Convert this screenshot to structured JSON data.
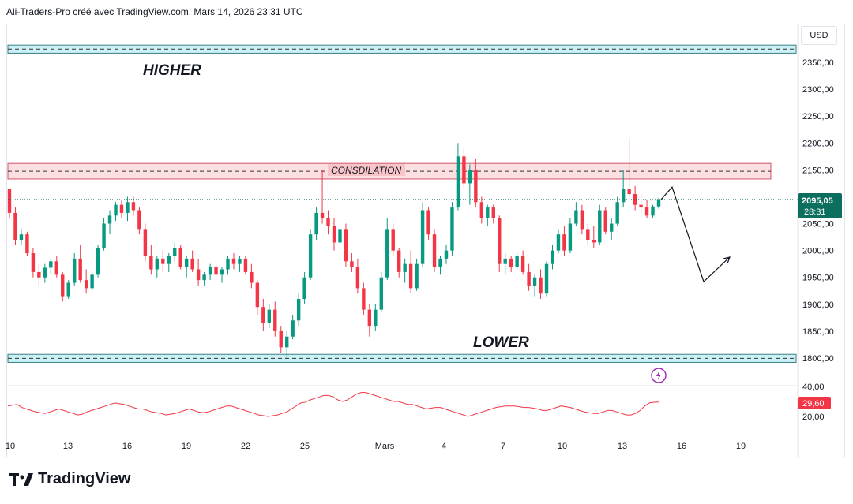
{
  "header": "Ali-Traders-Pro créé avec TradingView.com, Mars 14, 2026 23:31 UTC",
  "currency": "USD",
  "brand": "TradingView",
  "annotations": {
    "higher": "HIGHER",
    "lower": "LOWER",
    "consolidation": "CONSDILATION"
  },
  "price_badge": {
    "value": "2095,05",
    "countdown": "28:31",
    "color": "#0b6e5e"
  },
  "indicator_badge": {
    "value": "29,60",
    "color": "#f23645"
  },
  "colors": {
    "up": "#089981",
    "down": "#f23645",
    "zone": "#b2ebf2",
    "consolidation": "#f8c4c8",
    "indicator": "#f23645"
  },
  "icons": [
    "lightning-icon",
    "tradingview-logo-icon"
  ],
  "chart_data": {
    "type": "candlestick",
    "ylim": [
      1780,
      2390
    ],
    "y_ticks": [
      "2350,00",
      "2300,00",
      "2250,00",
      "2200,00",
      "2150,00",
      "2100,00",
      "2050,00",
      "2000,00",
      "1950,00",
      "1900,00",
      "1850,00",
      "1800,00"
    ],
    "y_tick_values": [
      2350,
      2300,
      2250,
      2200,
      2150,
      2100,
      2050,
      2000,
      1950,
      1900,
      1850,
      1800
    ],
    "x_ticks": [
      "10",
      "13",
      "16",
      "19",
      "22",
      "25",
      "Mars",
      "4",
      "7",
      "10",
      "13",
      "16",
      "19"
    ],
    "zones": [
      {
        "name": "higher",
        "from": 2367,
        "to": 2382
      },
      {
        "name": "consolidation",
        "from": 2133,
        "to": 2162
      },
      {
        "name": "lower",
        "from": 1792,
        "to": 1807
      }
    ],
    "last_price": 2095.05,
    "projection": [
      [
        2095,
        2118
      ],
      [
        2118,
        1942
      ],
      [
        1942,
        1988
      ]
    ],
    "indicator": {
      "ylim": [
        18,
        42
      ],
      "y_ticks": [
        "40,00",
        "20,00"
      ],
      "y_tick_values": [
        40,
        20
      ],
      "last": 29.6
    },
    "ohlc_path": [
      [
        2115,
        2105,
        2060,
        2070
      ],
      [
        2070,
        2080,
        2010,
        2020
      ],
      [
        2020,
        2040,
        2010,
        2030
      ],
      [
        2030,
        2035,
        1990,
        1995
      ],
      [
        1995,
        2005,
        1950,
        1960
      ],
      [
        1960,
        1975,
        1935,
        1950
      ],
      [
        1950,
        1975,
        1940,
        1968
      ],
      [
        1968,
        1985,
        1955,
        1980
      ],
      [
        1980,
        1990,
        1950,
        1955
      ],
      [
        1955,
        1960,
        1905,
        1915
      ],
      [
        1915,
        1945,
        1910,
        1940
      ],
      [
        1940,
        1995,
        1935,
        1985
      ],
      [
        1985,
        2010,
        1940,
        1945
      ],
      [
        1945,
        1965,
        1920,
        1930
      ],
      [
        1930,
        1960,
        1925,
        1955
      ],
      [
        1955,
        2010,
        1950,
        2005
      ],
      [
        2005,
        2060,
        2000,
        2050
      ],
      [
        2050,
        2075,
        2030,
        2065
      ],
      [
        2065,
        2090,
        2055,
        2085
      ],
      [
        2085,
        2095,
        2060,
        2070
      ],
      [
        2070,
        2100,
        2055,
        2090
      ],
      [
        2090,
        2100,
        2065,
        2075
      ],
      [
        2075,
        2080,
        2030,
        2040
      ],
      [
        2040,
        2050,
        1980,
        1990
      ],
      [
        1990,
        2010,
        1955,
        1965
      ],
      [
        1965,
        1990,
        1950,
        1985
      ],
      [
        1985,
        2000,
        1960,
        1975
      ],
      [
        1975,
        1995,
        1960,
        1990
      ],
      [
        1990,
        2015,
        1980,
        2005
      ],
      [
        2005,
        2010,
        1965,
        1970
      ],
      [
        1970,
        1990,
        1950,
        1985
      ],
      [
        1985,
        2000,
        1960,
        1965
      ],
      [
        1965,
        1985,
        1935,
        1945
      ],
      [
        1945,
        1960,
        1935,
        1955
      ],
      [
        1955,
        1975,
        1945,
        1970
      ],
      [
        1970,
        1975,
        1945,
        1955
      ],
      [
        1955,
        1970,
        1940,
        1965
      ],
      [
        1965,
        1990,
        1955,
        1985
      ],
      [
        1985,
        1995,
        1965,
        1975
      ],
      [
        1975,
        1990,
        1960,
        1985
      ],
      [
        1985,
        1990,
        1955,
        1960
      ],
      [
        1960,
        1975,
        1930,
        1940
      ],
      [
        1940,
        1945,
        1880,
        1895
      ],
      [
        1895,
        1910,
        1850,
        1865
      ],
      [
        1865,
        1900,
        1855,
        1890
      ],
      [
        1890,
        1905,
        1840,
        1850
      ],
      [
        1850,
        1860,
        1810,
        1820
      ],
      [
        1820,
        1850,
        1800,
        1840
      ],
      [
        1840,
        1880,
        1835,
        1870
      ],
      [
        1870,
        1920,
        1860,
        1910
      ],
      [
        1910,
        1960,
        1900,
        1950
      ],
      [
        1950,
        2040,
        1945,
        2030
      ],
      [
        2030,
        2080,
        2020,
        2070
      ],
      [
        2070,
        2150,
        2050,
        2060
      ],
      [
        2060,
        2075,
        2030,
        2045
      ],
      [
        2045,
        2060,
        2000,
        2015
      ],
      [
        2015,
        2055,
        1995,
        2040
      ],
      [
        2040,
        2050,
        1970,
        1980
      ],
      [
        1980,
        1995,
        1960,
        1970
      ],
      [
        1970,
        1985,
        1920,
        1930
      ],
      [
        1930,
        1940,
        1880,
        1890
      ],
      [
        1890,
        1900,
        1840,
        1860
      ],
      [
        1860,
        1900,
        1850,
        1890
      ],
      [
        1890,
        1960,
        1885,
        1950
      ],
      [
        1950,
        2060,
        1945,
        2040
      ],
      [
        2040,
        2050,
        1990,
        2000
      ],
      [
        2000,
        2005,
        1950,
        1960
      ],
      [
        1960,
        1985,
        1940,
        1975
      ],
      [
        1975,
        2000,
        1920,
        1930
      ],
      [
        1930,
        1985,
        1925,
        1975
      ],
      [
        1975,
        2090,
        1970,
        2075
      ],
      [
        2075,
        2080,
        2020,
        2030
      ],
      [
        2030,
        2040,
        1960,
        1970
      ],
      [
        1970,
        1990,
        1955,
        1985
      ],
      [
        1985,
        2010,
        1975,
        2000
      ],
      [
        2000,
        2090,
        1990,
        2080
      ],
      [
        2080,
        2200,
        2075,
        2175
      ],
      [
        2175,
        2190,
        2115,
        2125
      ],
      [
        2125,
        2160,
        2085,
        2150
      ],
      [
        2150,
        2170,
        2080,
        2090
      ],
      [
        2090,
        2100,
        2050,
        2060
      ],
      [
        2060,
        2085,
        2045,
        2080
      ],
      [
        2080,
        2085,
        2050,
        2060
      ],
      [
        2060,
        2065,
        1960,
        1975
      ],
      [
        1975,
        1995,
        1955,
        1985
      ],
      [
        1985,
        1990,
        1960,
        1970
      ],
      [
        1970,
        1995,
        1965,
        1990
      ],
      [
        1990,
        2000,
        1955,
        1960
      ],
      [
        1960,
        1975,
        1925,
        1935
      ],
      [
        1935,
        1955,
        1915,
        1950
      ],
      [
        1950,
        1965,
        1910,
        1920
      ],
      [
        1920,
        1980,
        1915,
        1975
      ],
      [
        1975,
        2010,
        1965,
        2000
      ],
      [
        2000,
        2040,
        1995,
        2030
      ],
      [
        2030,
        2045,
        1990,
        2000
      ],
      [
        2000,
        2060,
        1995,
        2050
      ],
      [
        2050,
        2090,
        2045,
        2075
      ],
      [
        2075,
        2085,
        2030,
        2040
      ],
      [
        2040,
        2050,
        2010,
        2020
      ],
      [
        2020,
        2045,
        2005,
        2015
      ],
      [
        2015,
        2085,
        2010,
        2075
      ],
      [
        2075,
        2080,
        2030,
        2035
      ],
      [
        2035,
        2060,
        2020,
        2050
      ],
      [
        2050,
        2100,
        2045,
        2090
      ],
      [
        2090,
        2150,
        2080,
        2115
      ],
      [
        2115,
        2210,
        2100,
        2105
      ],
      [
        2105,
        2120,
        2075,
        2085
      ],
      [
        2085,
        2105,
        2070,
        2080
      ],
      [
        2080,
        2095,
        2060,
        2065
      ],
      [
        2065,
        2085,
        2060,
        2082
      ],
      [
        2082,
        2098,
        2078,
        2095
      ]
    ],
    "indicator_values": [
      27,
      27.5,
      28,
      26,
      25,
      24,
      23,
      22.5,
      22,
      23,
      24,
      25,
      24,
      23,
      22,
      21,
      21.5,
      23,
      24,
      25,
      26,
      27,
      28,
      29,
      28.5,
      28,
      27,
      26,
      25,
      25,
      24,
      23,
      22.5,
      22,
      21,
      21.5,
      22,
      23,
      24,
      25,
      24,
      23,
      22.5,
      23,
      24,
      25,
      26,
      27,
      27,
      26,
      25,
      24,
      23,
      22,
      21,
      20.5,
      20,
      20.5,
      21,
      22,
      23,
      25,
      27,
      29,
      29.5,
      31,
      32,
      33,
      34,
      34,
      33,
      31,
      30,
      31,
      33,
      35,
      36,
      36,
      35,
      34,
      33,
      32,
      31,
      30,
      30,
      29,
      28,
      28,
      27,
      26,
      25,
      25.5,
      26,
      26,
      25,
      24,
      23,
      22,
      21,
      20,
      21,
      22,
      23,
      24,
      25,
      26,
      26.5,
      27,
      27,
      27,
      26.5,
      26,
      26,
      25.5,
      25,
      24,
      24,
      25,
      26,
      27,
      26.5,
      26,
      25,
      24,
      23,
      22.5,
      22,
      22,
      23,
      24,
      24,
      23,
      22,
      21,
      21,
      22,
      24,
      27,
      29,
      29.5,
      29.6
    ]
  }
}
